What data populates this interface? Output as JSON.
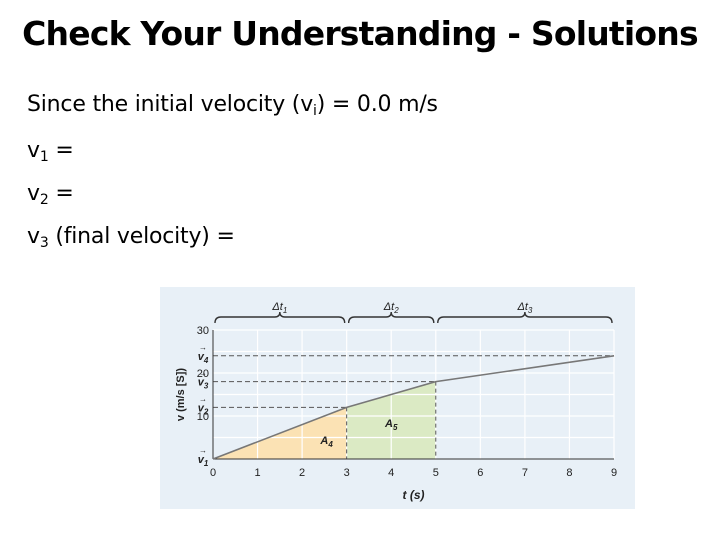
{
  "title": "Check Your Understanding - Solutions",
  "lines": {
    "l0": {
      "prefix": "Since the initial velocity (v",
      "sub": "i",
      "suffix": ") = 0.0 m/s"
    },
    "l1": {
      "prefix": "v",
      "sub": "1",
      "suffix": " ="
    },
    "l2": {
      "prefix": "v",
      "sub": "2",
      "suffix": " ="
    },
    "l3": {
      "prefix": "v",
      "sub": "3",
      "suffix": " (final velocity) ="
    }
  },
  "colors": {
    "figure_bg": "#e8f0f7",
    "area_a4": "#fbe2b4",
    "area_a5": "#dbeac4",
    "line": "#777777"
  },
  "chart_data": {
    "type": "line",
    "xlabel": "t (s)",
    "ylabel": "v (m/s [S])",
    "x_ticks": [
      0,
      1,
      2,
      3,
      4,
      5,
      6,
      7,
      8,
      9
    ],
    "y_ticks": [
      0,
      10,
      20,
      30
    ],
    "xlim": [
      0,
      9
    ],
    "ylim": [
      0,
      30
    ],
    "grid": true,
    "series": [
      {
        "x": [
          0,
          3,
          5,
          9
        ],
        "values": [
          0,
          12,
          18,
          24
        ]
      }
    ],
    "velocity_markers": [
      {
        "label": "v1",
        "value": 0
      },
      {
        "label": "v2",
        "value": 12
      },
      {
        "label": "v3",
        "value": 18
      },
      {
        "label": "v4",
        "value": 24
      }
    ],
    "areas": [
      {
        "label": "A4",
        "x_from": 0,
        "x_to": 3
      },
      {
        "label": "A5",
        "x_from": 3,
        "x_to": 5
      }
    ],
    "intervals": [
      {
        "label": "Δt1",
        "x_from": 0,
        "x_to": 3
      },
      {
        "label": "Δt2",
        "x_from": 3,
        "x_to": 5
      },
      {
        "label": "Δt3",
        "x_from": 5,
        "x_to": 9
      }
    ]
  }
}
